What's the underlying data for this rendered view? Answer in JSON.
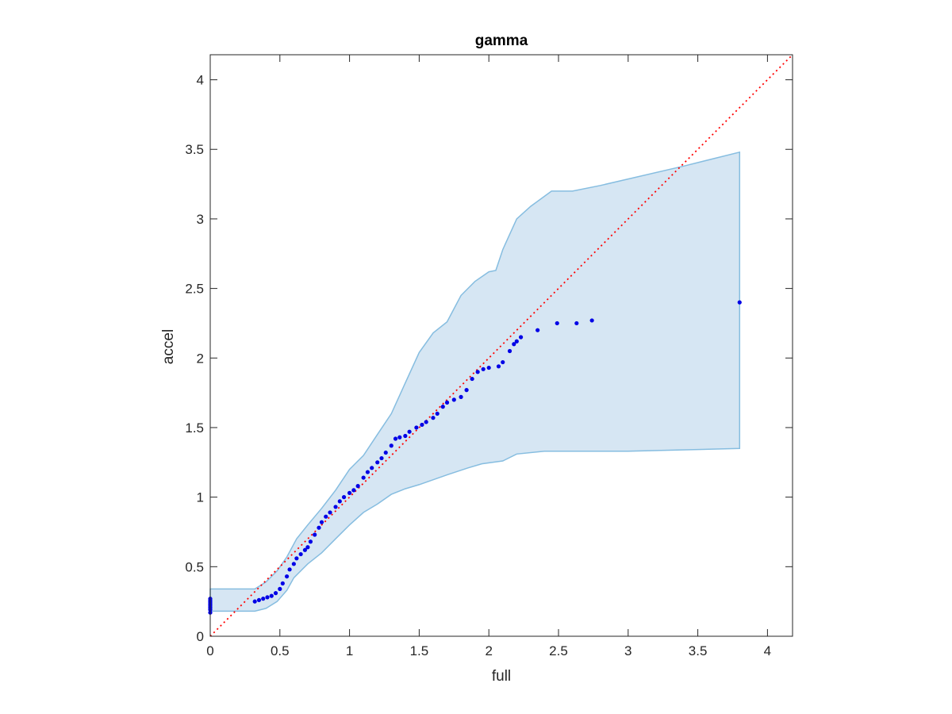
{
  "chart_data": {
    "type": "scatter",
    "title": "gamma",
    "xlabel": "full",
    "ylabel": "accel",
    "xlim": [
      0,
      4.18
    ],
    "ylim": [
      0,
      4.18
    ],
    "xticks": [
      0,
      0.5,
      1,
      1.5,
      2,
      2.5,
      3,
      3.5,
      4
    ],
    "yticks": [
      0,
      0.5,
      1,
      1.5,
      2,
      2.5,
      3,
      3.5,
      4
    ],
    "xtick_labels": [
      "0",
      "0.5",
      "1",
      "1.5",
      "2",
      "2.5",
      "3",
      "3.5",
      "4"
    ],
    "ytick_labels": [
      "0",
      "0.5",
      "1",
      "1.5",
      "2",
      "2.5",
      "3",
      "3.5",
      "4"
    ],
    "grid": false,
    "colors": {
      "points": "#0000e6",
      "band_fill": "#d6e6f3",
      "band_edge": "#86bde0",
      "reference_line": "#ff0000",
      "axes": "#262626"
    },
    "reference_line": {
      "x": [
        0,
        4.18
      ],
      "y": [
        0,
        4.18
      ],
      "style": "dotted"
    },
    "confidence_band": {
      "upper": [
        [
          0,
          0.34
        ],
        [
          0.32,
          0.34
        ],
        [
          0.4,
          0.39
        ],
        [
          0.48,
          0.47
        ],
        [
          0.55,
          0.57
        ],
        [
          0.62,
          0.7
        ],
        [
          0.7,
          0.8
        ],
        [
          0.8,
          0.92
        ],
        [
          0.9,
          1.05
        ],
        [
          1.0,
          1.2
        ],
        [
          1.1,
          1.3
        ],
        [
          1.2,
          1.45
        ],
        [
          1.3,
          1.6
        ],
        [
          1.4,
          1.82
        ],
        [
          1.5,
          2.04
        ],
        [
          1.6,
          2.18
        ],
        [
          1.7,
          2.26
        ],
        [
          1.8,
          2.45
        ],
        [
          1.9,
          2.55
        ],
        [
          2.0,
          2.62
        ],
        [
          2.05,
          2.63
        ],
        [
          2.1,
          2.78
        ],
        [
          2.2,
          3.0
        ],
        [
          2.3,
          3.09
        ],
        [
          2.45,
          3.2
        ],
        [
          2.6,
          3.2
        ],
        [
          2.8,
          3.24
        ],
        [
          3.4,
          3.38
        ],
        [
          3.8,
          3.48
        ]
      ],
      "lower": [
        [
          0,
          0.18
        ],
        [
          0.32,
          0.18
        ],
        [
          0.4,
          0.2
        ],
        [
          0.48,
          0.25
        ],
        [
          0.55,
          0.33
        ],
        [
          0.6,
          0.42
        ],
        [
          0.7,
          0.52
        ],
        [
          0.8,
          0.6
        ],
        [
          0.9,
          0.7
        ],
        [
          1.0,
          0.8
        ],
        [
          1.1,
          0.89
        ],
        [
          1.2,
          0.95
        ],
        [
          1.3,
          1.02
        ],
        [
          1.4,
          1.06
        ],
        [
          1.5,
          1.09
        ],
        [
          1.7,
          1.16
        ],
        [
          1.85,
          1.21
        ],
        [
          1.95,
          1.24
        ],
        [
          2.1,
          1.26
        ],
        [
          2.2,
          1.31
        ],
        [
          2.4,
          1.33
        ],
        [
          2.6,
          1.33
        ],
        [
          3.0,
          1.33
        ],
        [
          3.8,
          1.35
        ]
      ]
    },
    "series": [
      {
        "x": [
          0,
          0,
          0,
          0,
          0,
          0,
          0,
          0,
          0,
          0,
          0.32,
          0.35,
          0.38,
          0.41,
          0.44,
          0.47,
          0.5,
          0.52,
          0.55,
          0.57,
          0.6,
          0.62,
          0.65,
          0.68,
          0.7,
          0.72,
          0.75,
          0.78,
          0.8,
          0.83,
          0.86,
          0.9,
          0.93,
          0.96,
          1.0,
          1.03,
          1.06,
          1.1,
          1.13,
          1.16,
          1.2,
          1.23,
          1.26,
          1.3,
          1.33,
          1.36,
          1.4,
          1.43,
          1.48,
          1.52,
          1.55,
          1.6,
          1.63,
          1.67,
          1.7,
          1.75,
          1.8,
          1.84,
          1.88,
          1.92,
          1.96,
          2.0,
          2.07,
          2.1,
          2.15,
          2.18,
          2.2,
          2.23,
          2.35,
          2.49,
          2.63,
          2.74,
          3.8
        ],
        "y": [
          0.17,
          0.19,
          0.2,
          0.21,
          0.22,
          0.23,
          0.24,
          0.25,
          0.26,
          0.27,
          0.25,
          0.26,
          0.27,
          0.28,
          0.29,
          0.31,
          0.34,
          0.38,
          0.43,
          0.48,
          0.52,
          0.56,
          0.59,
          0.62,
          0.64,
          0.68,
          0.73,
          0.78,
          0.82,
          0.86,
          0.89,
          0.93,
          0.97,
          1.0,
          1.03,
          1.05,
          1.08,
          1.14,
          1.18,
          1.21,
          1.25,
          1.28,
          1.32,
          1.37,
          1.42,
          1.43,
          1.44,
          1.47,
          1.5,
          1.52,
          1.54,
          1.57,
          1.6,
          1.65,
          1.68,
          1.7,
          1.72,
          1.77,
          1.85,
          1.9,
          1.92,
          1.93,
          1.94,
          1.97,
          2.05,
          2.1,
          2.12,
          2.15,
          2.2,
          2.25,
          2.25,
          2.27,
          2.4
        ]
      }
    ]
  }
}
